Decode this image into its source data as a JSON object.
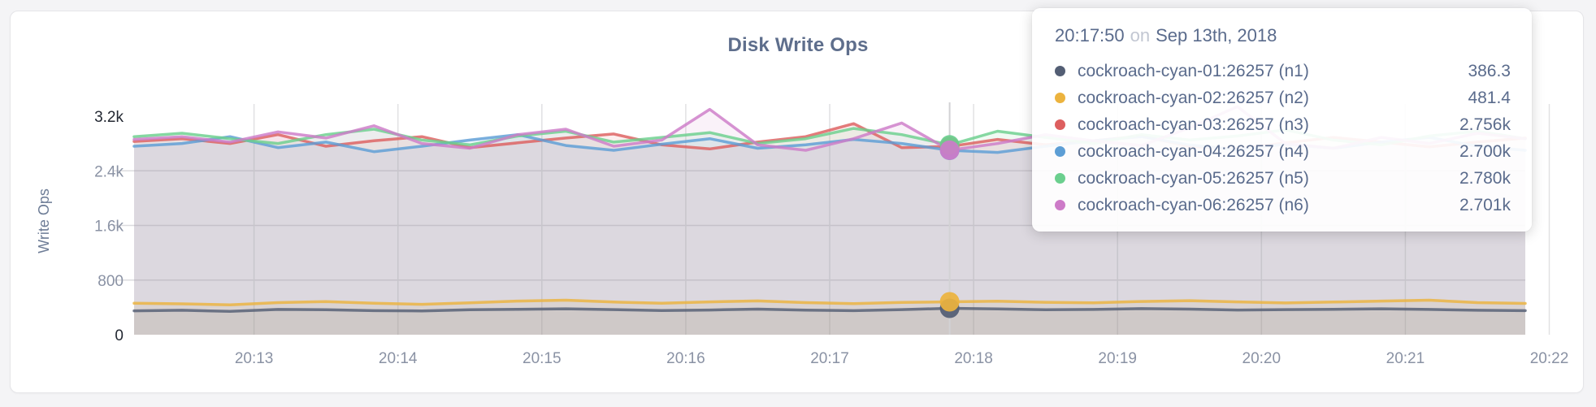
{
  "page": {
    "background": "#f4f4f6",
    "card_background": "#ffffff",
    "card_border": "#e5e5e8"
  },
  "chart": {
    "title": "Disk Write Ops",
    "y_axis_label": "Write Ops",
    "title_color": "#5e6e8c",
    "axis_text_color": "#8a92a4",
    "axis_text_strong_color": "#232832"
  },
  "tooltip": {
    "time": "20:17:50",
    "separator": "on",
    "date": "Sep 13th, 2018",
    "rows": [
      {
        "label": "cockroach-cyan-01:26257 (n1)",
        "value": "386.3",
        "color": "#535e74"
      },
      {
        "label": "cockroach-cyan-02:26257 (n2)",
        "value": "481.4",
        "color": "#ecb33e"
      },
      {
        "label": "cockroach-cyan-03:26257 (n3)",
        "value": "2.756k",
        "color": "#dd5f5f"
      },
      {
        "label": "cockroach-cyan-04:26257 (n4)",
        "value": "2.700k",
        "color": "#5d9ed5"
      },
      {
        "label": "cockroach-cyan-05:26257 (n5)",
        "value": "2.780k",
        "color": "#6bcf8e"
      },
      {
        "label": "cockroach-cyan-06:26257 (n6)",
        "value": "2.701k",
        "color": "#cd7bc8"
      }
    ]
  },
  "chart_data": {
    "type": "line",
    "title": "Disk Write Ops",
    "xlabel": "",
    "ylabel": "Write Ops",
    "grid": true,
    "legend_position": "tooltip-overlay",
    "ylim": [
      0,
      3400
    ],
    "y_ticks": [
      {
        "value": 0,
        "label": "0",
        "strong": true,
        "grid": false
      },
      {
        "value": 800,
        "label": "800",
        "strong": false,
        "grid": true
      },
      {
        "value": 1600,
        "label": "1.6k",
        "strong": false,
        "grid": true
      },
      {
        "value": 2400,
        "label": "2.4k",
        "strong": false,
        "grid": true
      },
      {
        "value": 3200,
        "label": "3.2k",
        "strong": true,
        "grid": false
      }
    ],
    "x_start": "20:12:10",
    "x_step_seconds": 20,
    "x_ticks": [
      "20:13",
      "20:14",
      "20:15",
      "20:16",
      "20:17",
      "20:18",
      "20:19",
      "20:20",
      "20:21",
      "20:22"
    ],
    "hover": {
      "time": "20:17:50",
      "date": "Sep 13th, 2018",
      "index": 17
    },
    "series": [
      {
        "id": "n1",
        "name": "cockroach-cyan-01:26257 (n1)",
        "color": "#535e74",
        "hover_value": 386.3,
        "values": [
          350,
          358,
          342,
          370,
          365,
          352,
          348,
          366,
          372,
          380,
          368,
          355,
          362,
          375,
          360,
          352,
          368,
          386.3,
          378,
          365,
          370,
          382,
          375,
          362,
          368,
          372,
          380,
          370,
          358,
          352
        ]
      },
      {
        "id": "n2",
        "name": "cockroach-cyan-02:26257 (n2)",
        "color": "#ecb33e",
        "hover_value": 481.4,
        "values": [
          460,
          452,
          438,
          470,
          485,
          460,
          445,
          468,
          492,
          505,
          478,
          462,
          480,
          495,
          470,
          455,
          472,
          481.4,
          490,
          475,
          468,
          486,
          498,
          480,
          465,
          478,
          492,
          505,
          470,
          458
        ]
      },
      {
        "id": "n3",
        "name": "cockroach-cyan-03:26257 (n3)",
        "color": "#dd5f5f",
        "hover_value": 2756,
        "values": [
          2830,
          2870,
          2800,
          2930,
          2760,
          2840,
          2900,
          2740,
          2810,
          2880,
          2940,
          2780,
          2720,
          2820,
          2900,
          3090,
          2740,
          2756,
          2860,
          2780,
          2840,
          2910,
          2760,
          2720,
          2810,
          2890,
          2820,
          2750,
          2820,
          2880
        ]
      },
      {
        "id": "n4",
        "name": "cockroach-cyan-04:26257 (n4)",
        "color": "#5d9ed5",
        "hover_value": 2700,
        "values": [
          2760,
          2800,
          2900,
          2740,
          2820,
          2680,
          2760,
          2850,
          2930,
          2770,
          2700,
          2790,
          2870,
          2730,
          2780,
          2860,
          2800,
          2700,
          2670,
          2760,
          2840,
          2900,
          2780,
          2710,
          2790,
          2730,
          2820,
          2890,
          2760,
          2700
        ]
      },
      {
        "id": "n5",
        "name": "cockroach-cyan-05:26257 (n5)",
        "color": "#6bcf8e",
        "hover_value": 2780,
        "values": [
          2900,
          2950,
          2870,
          2800,
          2930,
          3010,
          2850,
          2780,
          2910,
          2980,
          2820,
          2890,
          2960,
          2800,
          2870,
          3020,
          2930,
          2780,
          2980,
          2890,
          2800,
          2930,
          2850,
          2910,
          3000,
          2850,
          2780,
          2910,
          2980,
          2870
        ]
      },
      {
        "id": "n6",
        "name": "cockroach-cyan-06:26257 (n6)",
        "color": "#cd7bc8",
        "hover_value": 2701,
        "values": [
          2860,
          2900,
          2820,
          2970,
          2880,
          3060,
          2800,
          2730,
          2930,
          3010,
          2760,
          2850,
          3300,
          2780,
          2700,
          2870,
          3100,
          2701,
          2800,
          2930,
          2840,
          2770,
          3030,
          3340,
          2800,
          2730,
          2890,
          2800,
          2950,
          2870
        ]
      }
    ]
  }
}
